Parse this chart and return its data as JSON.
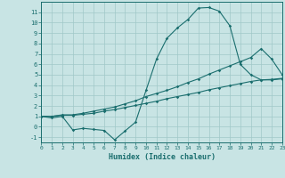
{
  "xlabel": "Humidex (Indice chaleur)",
  "bg_color": "#c8e4e4",
  "grid_color": "#a0c8c8",
  "line_color": "#1a6e6e",
  "xmin": 0,
  "xmax": 23,
  "ymin": -1.5,
  "ymax": 12.0,
  "yticks": [
    -1,
    0,
    1,
    2,
    3,
    4,
    5,
    6,
    7,
    8,
    9,
    10,
    11
  ],
  "xticks": [
    0,
    1,
    2,
    3,
    4,
    5,
    6,
    7,
    8,
    9,
    10,
    11,
    12,
    13,
    14,
    15,
    16,
    17,
    18,
    19,
    20,
    21,
    22,
    23
  ],
  "curve1_x": [
    0,
    1,
    2,
    3,
    4,
    5,
    6,
    7,
    8,
    9,
    10,
    11,
    12,
    13,
    14,
    15,
    16,
    17,
    18,
    19,
    20,
    21,
    22,
    23
  ],
  "curve1_y": [
    1.0,
    0.85,
    1.0,
    -0.3,
    -0.15,
    -0.25,
    -0.35,
    -1.25,
    -0.4,
    0.45,
    3.5,
    6.5,
    8.5,
    9.5,
    10.3,
    11.4,
    11.45,
    11.1,
    9.7,
    6.0,
    5.0,
    4.5,
    4.5,
    4.6
  ],
  "curve2_x": [
    0,
    1,
    2,
    3,
    4,
    5,
    6,
    7,
    8,
    9,
    10,
    11,
    12,
    13,
    14,
    15,
    16,
    17,
    18,
    19,
    20,
    21,
    22,
    23
  ],
  "curve2_y": [
    1.0,
    1.0,
    1.15,
    1.15,
    1.3,
    1.5,
    1.7,
    1.9,
    2.2,
    2.5,
    2.9,
    3.2,
    3.5,
    3.85,
    4.25,
    4.6,
    5.05,
    5.45,
    5.85,
    6.25,
    6.65,
    7.5,
    6.5,
    5.0
  ],
  "curve3_x": [
    0,
    1,
    2,
    3,
    4,
    5,
    6,
    7,
    8,
    9,
    10,
    11,
    12,
    13,
    14,
    15,
    16,
    17,
    18,
    19,
    20,
    21,
    22,
    23
  ],
  "curve3_y": [
    1.0,
    1.0,
    1.1,
    1.1,
    1.2,
    1.3,
    1.5,
    1.65,
    1.85,
    2.05,
    2.25,
    2.45,
    2.7,
    2.9,
    3.1,
    3.3,
    3.55,
    3.75,
    3.95,
    4.15,
    4.35,
    4.5,
    4.55,
    4.65
  ]
}
